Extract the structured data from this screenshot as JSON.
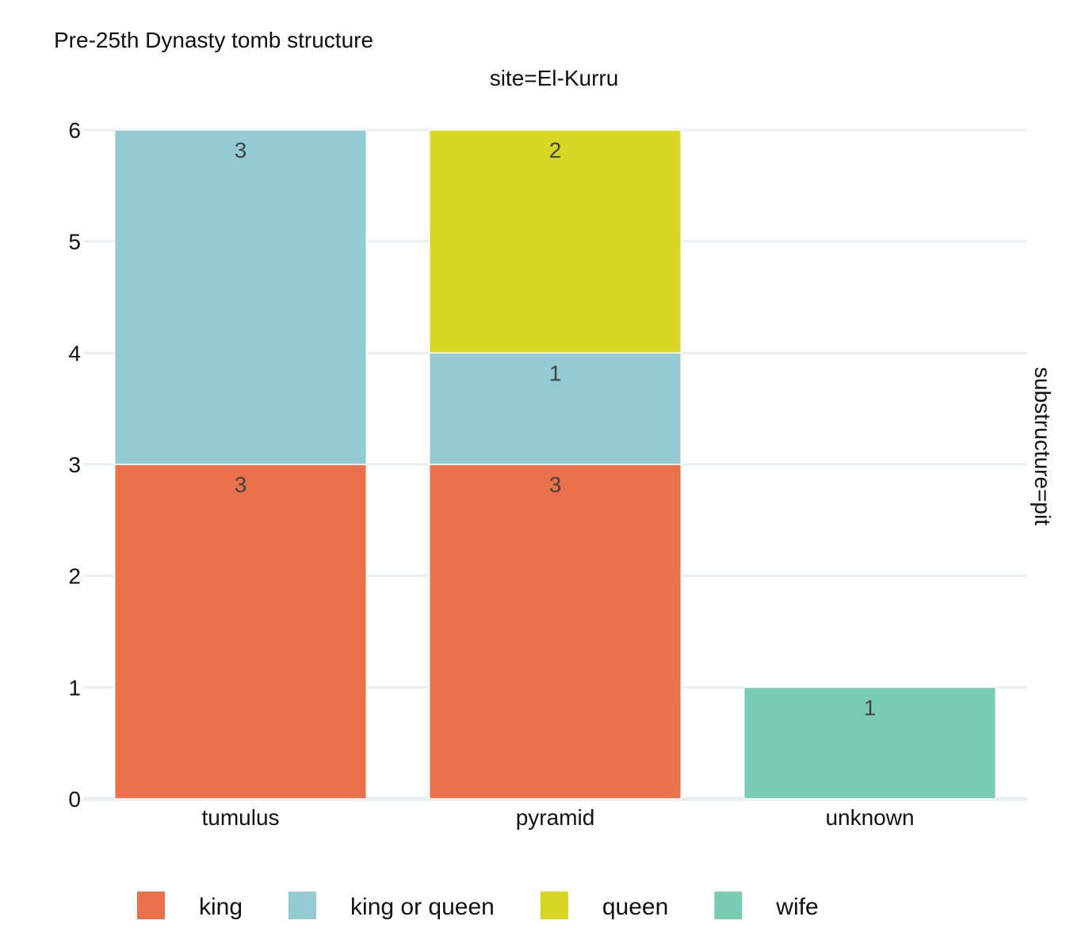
{
  "chart_data": {
    "type": "bar",
    "barmode": "stack",
    "title": "Pre-25th Dynasty tomb structure",
    "facet_col_label": "site=El-Kurru",
    "facet_row_label": "substructure=pit",
    "xlabel": "",
    "ylabel": "",
    "categories": [
      "tumulus",
      "pyramid",
      "unknown"
    ],
    "ylim": [
      0,
      6
    ],
    "yticks": [
      0,
      1,
      2,
      3,
      4,
      5,
      6
    ],
    "grid": true,
    "legend_position": "bottom",
    "series": [
      {
        "name": "king",
        "color": "#e9714c",
        "values": [
          3,
          3,
          0
        ]
      },
      {
        "name": "king or queen",
        "color": "#94cad2",
        "values": [
          3,
          1,
          0
        ]
      },
      {
        "name": "queen",
        "color": "#d7d723",
        "values": [
          0,
          2,
          0
        ]
      },
      {
        "name": "wife",
        "color": "#7acbb3",
        "values": [
          0,
          0,
          1
        ]
      }
    ]
  }
}
